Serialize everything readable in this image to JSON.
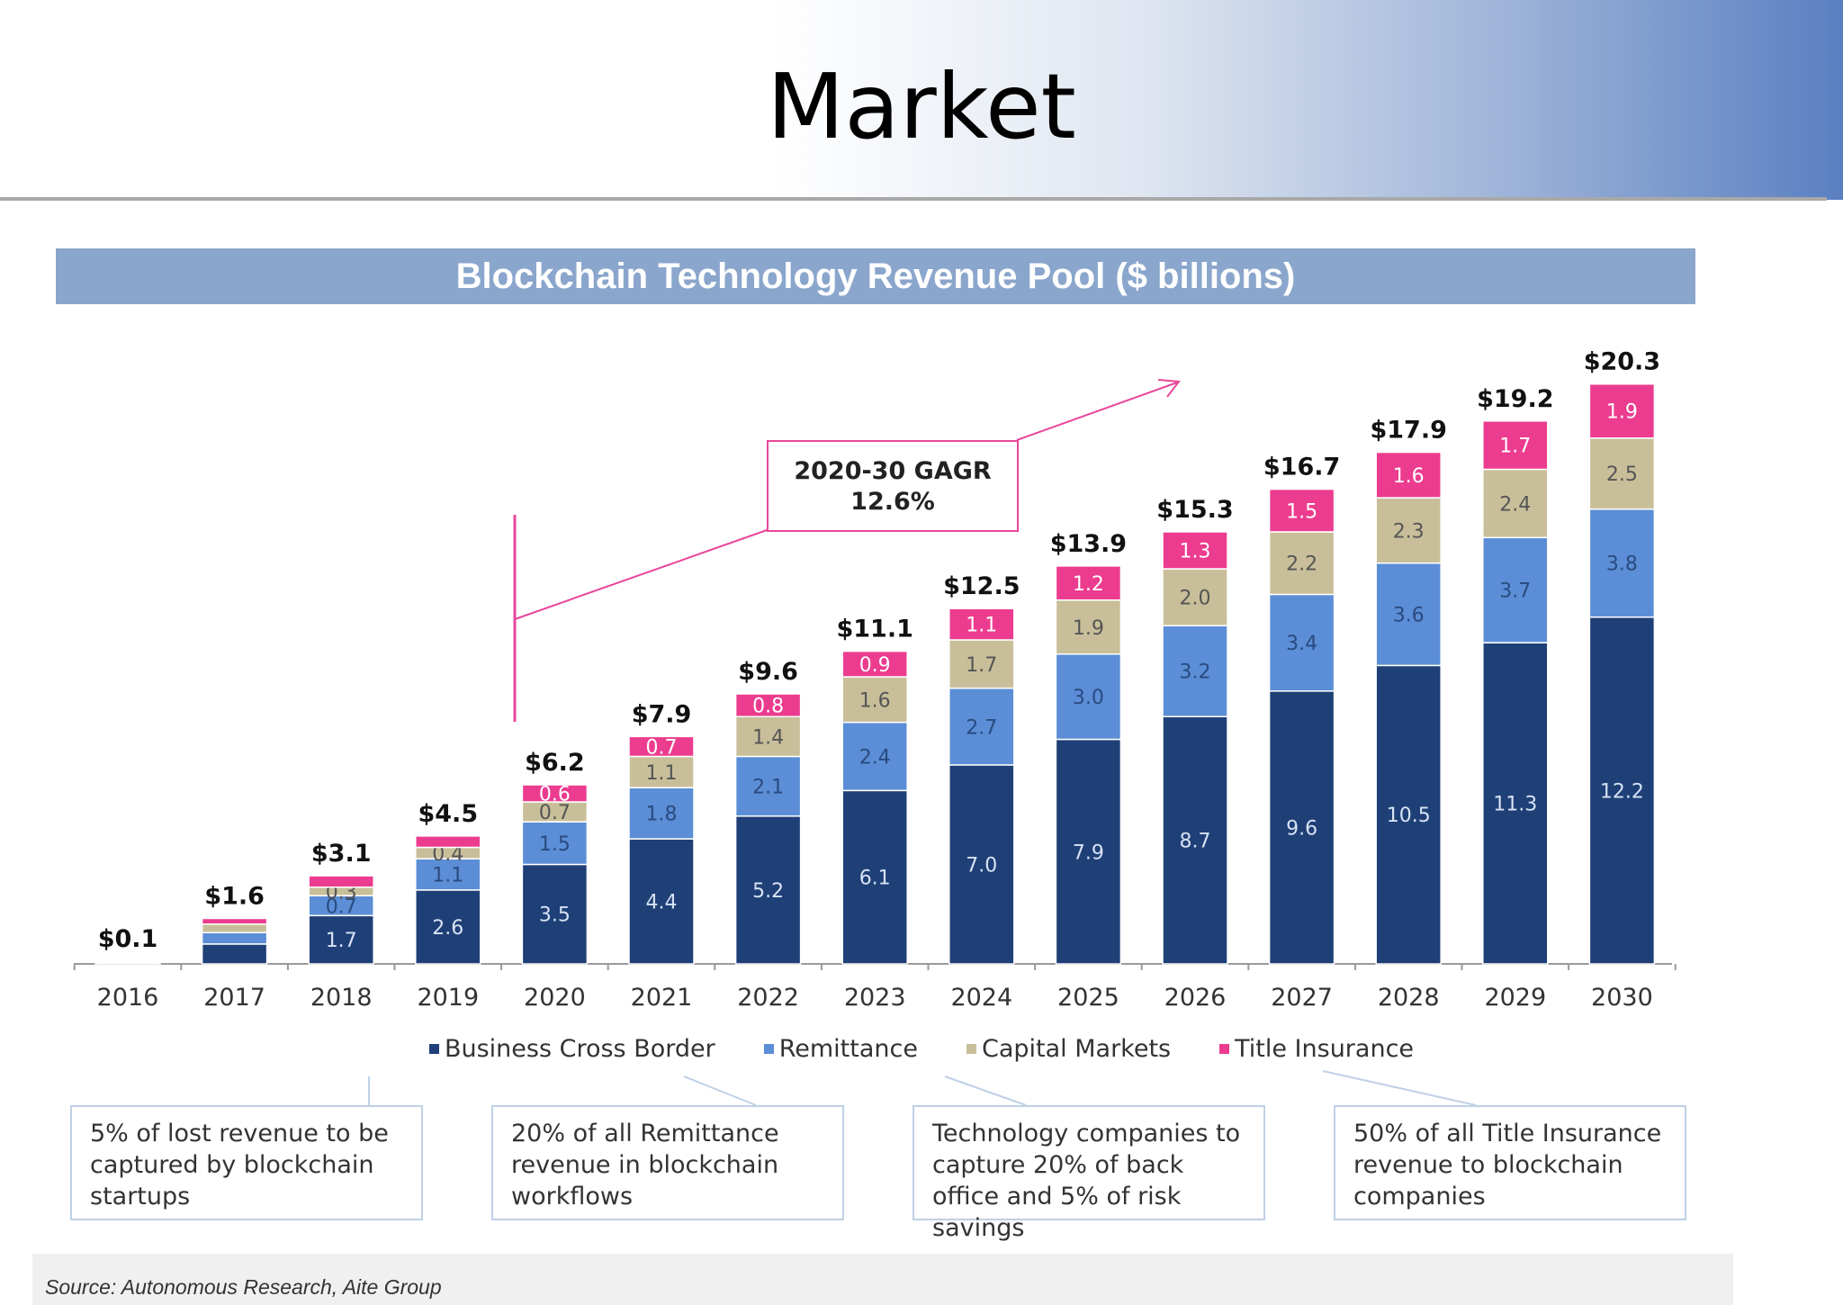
{
  "slide": {
    "title": "Market"
  },
  "chart_banner": "Blockchain Technology Revenue Pool ($ billions)",
  "colors": {
    "business_cross_border": "#1f3f77",
    "remittance": "#5b8ed6",
    "capital_markets": "#c8bf9a",
    "title_insurance": "#ec3c8f",
    "annotation": "#e8479a"
  },
  "chart_data": {
    "type": "bar",
    "stacked": true,
    "title": "Blockchain Technology Revenue Pool ($ billions)",
    "categories": [
      "2016",
      "2017",
      "2018",
      "2019",
      "2020",
      "2021",
      "2022",
      "2023",
      "2024",
      "2025",
      "2026",
      "2027",
      "2028",
      "2029",
      "2030"
    ],
    "series": [
      {
        "name": "Business Cross Border",
        "values": [
          0.05,
          0.7,
          1.7,
          2.6,
          3.5,
          4.4,
          5.2,
          6.1,
          7.0,
          7.9,
          8.7,
          9.6,
          10.5,
          11.3,
          12.2
        ],
        "labels": [
          "",
          "",
          "1.7",
          "2.6",
          "3.5",
          "4.4",
          "5.2",
          "6.1",
          "7.0",
          "7.9",
          "8.7",
          "9.6",
          "10.5",
          "11.3",
          "12.2"
        ]
      },
      {
        "name": "Remittance",
        "values": [
          0.02,
          0.4,
          0.7,
          1.1,
          1.5,
          1.8,
          2.1,
          2.4,
          2.7,
          3.0,
          3.2,
          3.4,
          3.6,
          3.7,
          3.8
        ],
        "labels": [
          "",
          "",
          "0.7",
          "1.1",
          "1.5",
          "1.8",
          "2.1",
          "2.4",
          "2.7",
          "3.0",
          "3.2",
          "3.4",
          "3.6",
          "3.7",
          "3.8"
        ]
      },
      {
        "name": "Capital Markets",
        "values": [
          0.02,
          0.3,
          0.3,
          0.4,
          0.7,
          1.1,
          1.4,
          1.6,
          1.7,
          1.9,
          2.0,
          2.2,
          2.3,
          2.4,
          2.5
        ],
        "labels": [
          "",
          "",
          "0.3",
          "0.4",
          "0.7",
          "1.1",
          "1.4",
          "1.6",
          "1.7",
          "1.9",
          "2.0",
          "2.2",
          "2.3",
          "2.4",
          "2.5"
        ]
      },
      {
        "name": "Title Insurance",
        "values": [
          0.01,
          0.2,
          0.4,
          0.4,
          0.6,
          0.7,
          0.8,
          0.9,
          1.1,
          1.2,
          1.3,
          1.5,
          1.6,
          1.7,
          1.9
        ],
        "labels": [
          "",
          "",
          "",
          "",
          "0.6",
          "0.7",
          "0.8",
          "0.9",
          "1.1",
          "1.2",
          "1.3",
          "1.5",
          "1.6",
          "1.7",
          "1.9"
        ]
      }
    ],
    "totals": [
      "$0.1",
      "$1.6",
      "$3.1",
      "$4.5",
      "$6.2",
      "$7.9",
      "$9.6",
      "$11.1",
      "$12.5",
      "$13.9",
      "$15.3",
      "$16.7",
      "$17.9",
      "$19.2",
      "$20.3"
    ],
    "ylim": [
      0,
      21.5
    ],
    "legend": "bottom",
    "grid": false,
    "annotation": {
      "text_line1": "2020-30 GAGR",
      "text_line2": "12.6%"
    }
  },
  "callouts": [
    {
      "text": "5% of lost revenue to be captured by blockchain startups"
    },
    {
      "text": "20% of all Remittance revenue in blockchain workflows"
    },
    {
      "text": "Technology companies to capture 20% of back office and 5% of risk savings"
    },
    {
      "text": "50% of all Title Insurance revenue to blockchain companies"
    }
  ],
  "source": "Source: Autonomous Research, Aite Group"
}
